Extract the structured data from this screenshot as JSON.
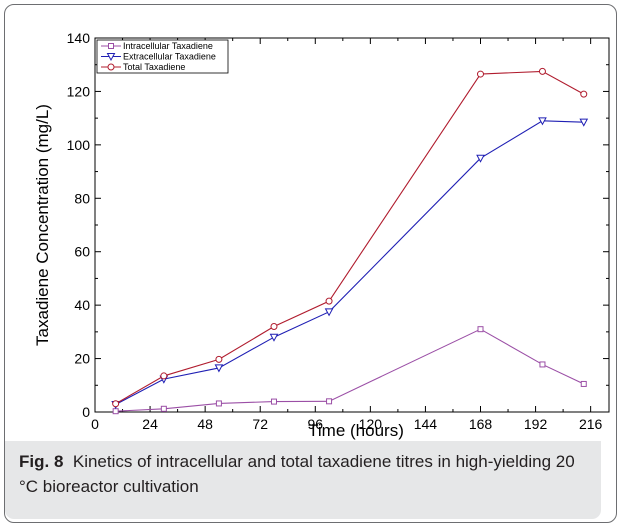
{
  "chart_data": {
    "type": "line",
    "xlabel": "Time (hours)",
    "ylabel": "Taxadiene Concentration (mg/L)",
    "xlim": [
      0,
      224
    ],
    "ylim": [
      0,
      140
    ],
    "xticks": [
      0,
      24,
      48,
      72,
      96,
      120,
      144,
      168,
      192,
      216
    ],
    "yticks": [
      0,
      20,
      40,
      60,
      80,
      100,
      120,
      140
    ],
    "grid": false,
    "legend_position": "top-left",
    "series": [
      {
        "name": "Intracellular Taxadiene",
        "color": "#9b4fa6",
        "marker": "square",
        "x": [
          9,
          30,
          54,
          78,
          102,
          168,
          195,
          213
        ],
        "y": [
          0.3,
          1.2,
          3.2,
          3.9,
          4.0,
          31.0,
          17.8,
          10.5
        ]
      },
      {
        "name": "Extracellular Taxadiene",
        "color": "#1f1fb4",
        "marker": "triangle-down",
        "x": [
          9,
          30,
          54,
          78,
          102,
          168,
          195,
          213
        ],
        "y": [
          2.8,
          12.3,
          16.5,
          28.0,
          37.5,
          95.0,
          109.0,
          108.5
        ]
      },
      {
        "name": "Total Taxadiene",
        "color": "#b01c2e",
        "marker": "circle",
        "x": [
          9,
          30,
          54,
          78,
          102,
          168,
          195,
          213
        ],
        "y": [
          3.1,
          13.5,
          19.7,
          32.0,
          41.5,
          126.5,
          127.5,
          119.0
        ]
      }
    ]
  },
  "caption": {
    "label": "Fig. 8",
    "text": "Kinetics of intracellular and total taxadiene titres in high-yielding 20 °C bioreactor cultivation"
  }
}
